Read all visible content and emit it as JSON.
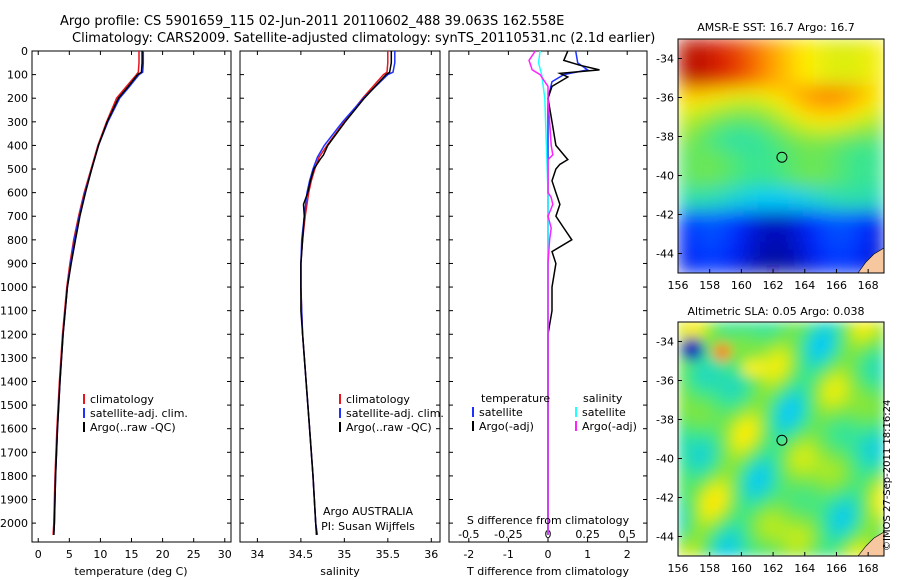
{
  "header": {
    "title_line1": "Argo profile: CS 5901659_115 02-Jun-2011 20110602_488 39.063S 162.558E",
    "title_line2": "Climatology: CARS2009. Satellite-adjusted climatology: synTS_20110531.nc (2.1d earlier)"
  },
  "colors": {
    "climatology": "#e8141e",
    "satellite": "#1f31ff",
    "argo": "#000000",
    "argo_salinity": "#ff22ff",
    "satellite_salinity": "#22ffff"
  },
  "chart_data": [
    {
      "type": "line",
      "xlabel": "temperature (deg C)",
      "xlim": [
        -1,
        31
      ],
      "ylim": [
        2080,
        0
      ],
      "xticks": [
        0,
        5,
        10,
        15,
        20,
        25,
        30
      ],
      "yticks": [
        0,
        100,
        200,
        300,
        400,
        500,
        600,
        700,
        800,
        900,
        1000,
        1100,
        1200,
        1300,
        1400,
        1500,
        1600,
        1700,
        1800,
        1900,
        2000
      ],
      "legend": [
        "climatology",
        "satellite-adj. clim.",
        "Argo(..raw -QC)"
      ],
      "series": [
        {
          "name": "climatology",
          "y": [
            0,
            50,
            90,
            100,
            150,
            200,
            300,
            400,
            500,
            600,
            700,
            800,
            900,
            1000,
            1200,
            1400,
            1600,
            1800,
            2000,
            2050
          ],
          "values": [
            16.2,
            16.2,
            16.1,
            15.8,
            14.2,
            12.6,
            11.0,
            9.6,
            8.5,
            7.4,
            6.5,
            5.7,
            5.1,
            4.6,
            3.9,
            3.4,
            3.0,
            2.7,
            2.5,
            2.4
          ]
        },
        {
          "name": "satellite-adj. clim.",
          "y": [
            0,
            50,
            90,
            100,
            150,
            200,
            300,
            400,
            500,
            600,
            700,
            800,
            900,
            1000,
            1200,
            1400,
            1600,
            1800,
            2000,
            2050
          ],
          "values": [
            16.9,
            16.9,
            16.8,
            16.2,
            14.7,
            13.1,
            11.2,
            9.7,
            8.6,
            7.5,
            6.6,
            5.8,
            5.2,
            4.7,
            4.0,
            3.5,
            3.1,
            2.8,
            2.6,
            2.5
          ]
        },
        {
          "name": "Argo(..raw -QC)",
          "y": [
            0,
            50,
            90,
            100,
            150,
            200,
            300,
            400,
            500,
            600,
            700,
            800,
            900,
            1000,
            1200,
            1400,
            1600,
            1800,
            2000,
            2050
          ],
          "values": [
            16.7,
            16.7,
            16.6,
            16.0,
            14.5,
            12.9,
            11.1,
            9.7,
            8.6,
            7.6,
            6.7,
            6.0,
            5.3,
            4.7,
            4.0,
            3.5,
            3.1,
            2.8,
            2.6,
            2.5
          ]
        }
      ]
    },
    {
      "type": "line",
      "xlabel": "salinity",
      "xlim": [
        33.8,
        36.1
      ],
      "ylim": [
        2080,
        0
      ],
      "xticks": [
        34,
        34.5,
        35,
        35.5,
        36
      ],
      "legend": [
        "climatology",
        "satellite-adj. clim.",
        "Argo(..raw -QC)"
      ],
      "annotation": [
        "Argo AUSTRALIA",
        "PI: Susan Wijffels"
      ],
      "series": [
        {
          "name": "climatology",
          "y": [
            0,
            50,
            90,
            100,
            200,
            300,
            400,
            450,
            500,
            550,
            600,
            700,
            800,
            900,
            1000,
            1100,
            1200,
            1400,
            1600,
            1800,
            2000,
            2050
          ],
          "values": [
            35.5,
            35.5,
            35.49,
            35.45,
            35.21,
            35.0,
            34.8,
            34.71,
            34.66,
            34.62,
            34.59,
            34.55,
            34.52,
            34.5,
            34.5,
            34.51,
            34.52,
            34.56,
            34.6,
            34.64,
            34.67,
            34.68
          ]
        },
        {
          "name": "satellite-adj. clim.",
          "y": [
            0,
            50,
            90,
            100,
            200,
            300,
            400,
            450,
            500,
            550,
            600,
            700,
            800,
            900,
            1000,
            1100,
            1200,
            1400,
            1600,
            1800,
            2000,
            2050
          ],
          "values": [
            35.58,
            35.58,
            35.56,
            35.5,
            35.22,
            34.98,
            34.77,
            34.69,
            34.64,
            34.6,
            34.57,
            34.54,
            34.51,
            34.5,
            34.5,
            34.51,
            34.52,
            34.56,
            34.6,
            34.64,
            34.67,
            34.69
          ]
        },
        {
          "name": "Argo(..raw -QC)",
          "y": [
            0,
            50,
            90,
            100,
            200,
            300,
            400,
            440,
            460,
            500,
            550,
            600,
            650,
            700,
            800,
            900,
            1000,
            1100,
            1200,
            1400,
            1600,
            1800,
            2000,
            2050
          ],
          "values": [
            35.54,
            35.54,
            35.52,
            35.48,
            35.23,
            35.01,
            34.81,
            34.76,
            34.72,
            34.65,
            34.61,
            34.58,
            34.53,
            34.54,
            34.52,
            34.5,
            34.5,
            34.5,
            34.52,
            34.56,
            34.6,
            34.64,
            34.67,
            34.68
          ]
        }
      ]
    },
    {
      "type": "line",
      "xlabel_top": "S difference from climatology",
      "xlabel_bottom": "T difference from climatology",
      "xlim": [
        -2.5,
        2.5
      ],
      "ylim": [
        2080,
        0
      ],
      "xticks_top": [
        -0.5,
        -0.25,
        0,
        0.25,
        0.5
      ],
      "xticklabels_top": [
        "-0.5",
        "-0.25",
        "0",
        "0.25",
        "0.5"
      ],
      "xticks_bottom": [
        -2,
        -1,
        0,
        1,
        2
      ],
      "legend_titles": [
        "temperature",
        "salinity"
      ],
      "legend": [
        "satellite",
        "Argo(-adj)",
        "satellite",
        "Argo(-adj)"
      ],
      "series": [
        {
          "name": "temperature satellite",
          "y": [
            0,
            50,
            80,
            100,
            130,
            200,
            400,
            600,
            800,
            1000,
            1500,
            2050
          ],
          "values": [
            0.7,
            0.75,
            1.0,
            0.4,
            0.1,
            0.0,
            0.0,
            0.0,
            0.0,
            0.0,
            0.0,
            0.0
          ]
        },
        {
          "name": "temperature Argo(-adj)",
          "y": [
            0,
            40,
            60,
            80,
            95,
            110,
            150,
            200,
            300,
            400,
            440,
            460,
            480,
            500,
            550,
            600,
            650,
            700,
            750,
            800,
            850,
            900,
            1000,
            1100,
            1200,
            1500,
            2050
          ],
          "values": [
            0.5,
            0.4,
            0.8,
            1.3,
            0.3,
            0.5,
            0.1,
            0.0,
            0.1,
            0.2,
            0.4,
            0.5,
            0.3,
            0.2,
            0.1,
            0.2,
            0.3,
            0.2,
            0.4,
            0.6,
            0.1,
            0.2,
            0.1,
            0.1,
            0.0,
            0.0,
            0.0
          ]
        },
        {
          "name": "salinity satellite",
          "y": [
            0,
            50,
            100,
            200,
            400,
            600,
            800,
            1000,
            1500,
            2050
          ],
          "values": [
            -0.05,
            -0.06,
            -0.04,
            -0.02,
            -0.01,
            0.0,
            0.0,
            0.0,
            0.0,
            0.0
          ]
        },
        {
          "name": "salinity Argo(-adj)",
          "y": [
            0,
            40,
            80,
            100,
            130,
            150,
            200,
            400,
            440,
            460,
            600,
            620,
            650,
            700,
            750,
            800,
            900,
            1000,
            1500,
            2050
          ],
          "values": [
            -0.08,
            -0.12,
            -0.1,
            -0.05,
            -0.02,
            0.0,
            0.0,
            0.02,
            0.03,
            0.0,
            0.0,
            0.02,
            0.03,
            0.0,
            0.02,
            0.01,
            0.0,
            0.0,
            0.0,
            0.0
          ]
        }
      ]
    },
    {
      "type": "heatmap",
      "title": "AMSR-E SST: 16.7 Argo: 16.7",
      "xlim": [
        156,
        169
      ],
      "ylim": [
        -45,
        -33
      ],
      "xticks": [
        156,
        158,
        160,
        162,
        164,
        166,
        168
      ],
      "yticks": [
        -34,
        -36,
        -38,
        -40,
        -42,
        -44
      ],
      "marker": [
        162.558,
        -39.063
      ]
    },
    {
      "type": "heatmap",
      "title": "Altimetric SLA: 0.05 Argo: 0.038",
      "xlim": [
        156,
        169
      ],
      "ylim": [
        -45,
        -33
      ],
      "xticks": [
        156,
        158,
        160,
        162,
        164,
        166,
        168
      ],
      "yticks": [
        -34,
        -36,
        -38,
        -40,
        -42,
        -44
      ],
      "marker": [
        162.558,
        -39.063
      ]
    }
  ],
  "footer": {
    "stamp": "©IMOS 27-Sep-2011 18:16:24"
  }
}
